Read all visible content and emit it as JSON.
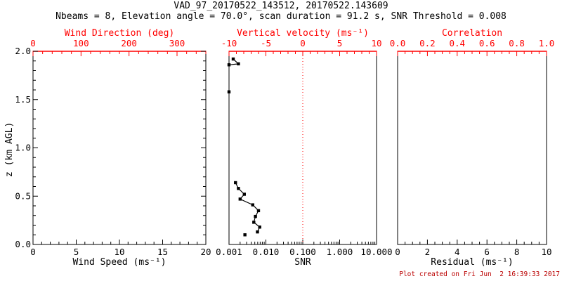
{
  "header": {
    "title": "VAD_97_20170522_143512, 20170522.143609",
    "subtitle": "Nbeams = 8, Elevation angle = 70.0°, scan duration = 91.2 s, SNR Threshold = 0.008"
  },
  "footer": {
    "timestamp": "Plot created on Fri Jun  2 16:39:33 2017"
  },
  "colors": {
    "axis_accent": "#ff0000",
    "data": "#000000",
    "timestamp": "#bb0000",
    "background": "#ffffff"
  },
  "chart_data": [
    {
      "id": "wind-panel",
      "type": "scatter",
      "title_top": "Wind Direction (deg)",
      "xlabel": "Wind Speed (ms⁻¹)",
      "ylabel": "z (km AGL)",
      "x_bottom": {
        "lim": [
          0,
          20
        ],
        "ticks": [
          0,
          5,
          10,
          15,
          20
        ],
        "labels": [
          "0",
          "5",
          "10",
          "15",
          "20"
        ],
        "minor_step": 1
      },
      "x_top": {
        "lim": [
          0,
          360
        ],
        "ticks": [
          0,
          100,
          200,
          300
        ],
        "labels": [
          "0",
          "100",
          "200",
          "300"
        ],
        "minor_step": 20
      },
      "y": {
        "lim": [
          0,
          2
        ],
        "ticks": [
          0,
          0.5,
          1,
          1.5,
          2
        ],
        "labels": [
          "0.0",
          "0.5",
          "1.0",
          "1.5",
          "2.0"
        ],
        "minor_step": 0.1
      },
      "series": []
    },
    {
      "id": "snr-panel",
      "type": "line",
      "title_top": "Vertical velocity (ms⁻¹)",
      "xlabel": "SNR",
      "x_bottom": {
        "scale": "log",
        "lim": [
          0.001,
          10
        ],
        "ticks": [
          0.001,
          0.01,
          0.1,
          1,
          10
        ],
        "labels": [
          "0.001",
          "0.010",
          "0.100",
          "1.000",
          "10.000"
        ]
      },
      "x_top": {
        "lim": [
          -10,
          10
        ],
        "ticks": [
          -10,
          -5,
          0,
          5,
          10
        ],
        "labels": [
          "-10",
          "-5",
          "0",
          "5",
          "10"
        ],
        "minor_step": 1
      },
      "refline_top_value": 0,
      "series": [
        {
          "name": "snr-profile-upper",
          "connected": true,
          "points": [
            [
              0.0013,
              1.92
            ],
            [
              0.0018,
              1.87
            ],
            [
              0.001,
              1.86
            ]
          ]
        },
        {
          "name": "snr-point-isolated-high",
          "connected": false,
          "points": [
            [
              0.001,
              1.58
            ]
          ]
        },
        {
          "name": "snr-profile-lower",
          "connected": true,
          "points": [
            [
              0.0015,
              0.64
            ],
            [
              0.0018,
              0.58
            ],
            [
              0.0026,
              0.52
            ],
            [
              0.002,
              0.47
            ],
            [
              0.0044,
              0.41
            ],
            [
              0.0063,
              0.35
            ],
            [
              0.0052,
              0.29
            ],
            [
              0.0047,
              0.23
            ],
            [
              0.0068,
              0.18
            ],
            [
              0.0059,
              0.13
            ]
          ]
        },
        {
          "name": "snr-point-isolated-low",
          "connected": false,
          "points": [
            [
              0.0027,
              0.1
            ]
          ]
        }
      ]
    },
    {
      "id": "residual-panel",
      "type": "scatter",
      "title_top": "Correlation",
      "xlabel": "Residual (ms⁻¹)",
      "x_bottom": {
        "lim": [
          0,
          10
        ],
        "ticks": [
          0,
          2,
          4,
          6,
          8,
          10
        ],
        "labels": [
          "0",
          "2",
          "4",
          "6",
          "8",
          "10"
        ],
        "minor_step": 0.5
      },
      "x_top": {
        "lim": [
          0,
          1
        ],
        "ticks": [
          0,
          0.2,
          0.4,
          0.6,
          0.8,
          1.0
        ],
        "labels": [
          "0.0",
          "0.2",
          "0.4",
          "0.6",
          "0.8",
          "1.0"
        ],
        "minor_step": 0.05
      },
      "series": []
    }
  ]
}
